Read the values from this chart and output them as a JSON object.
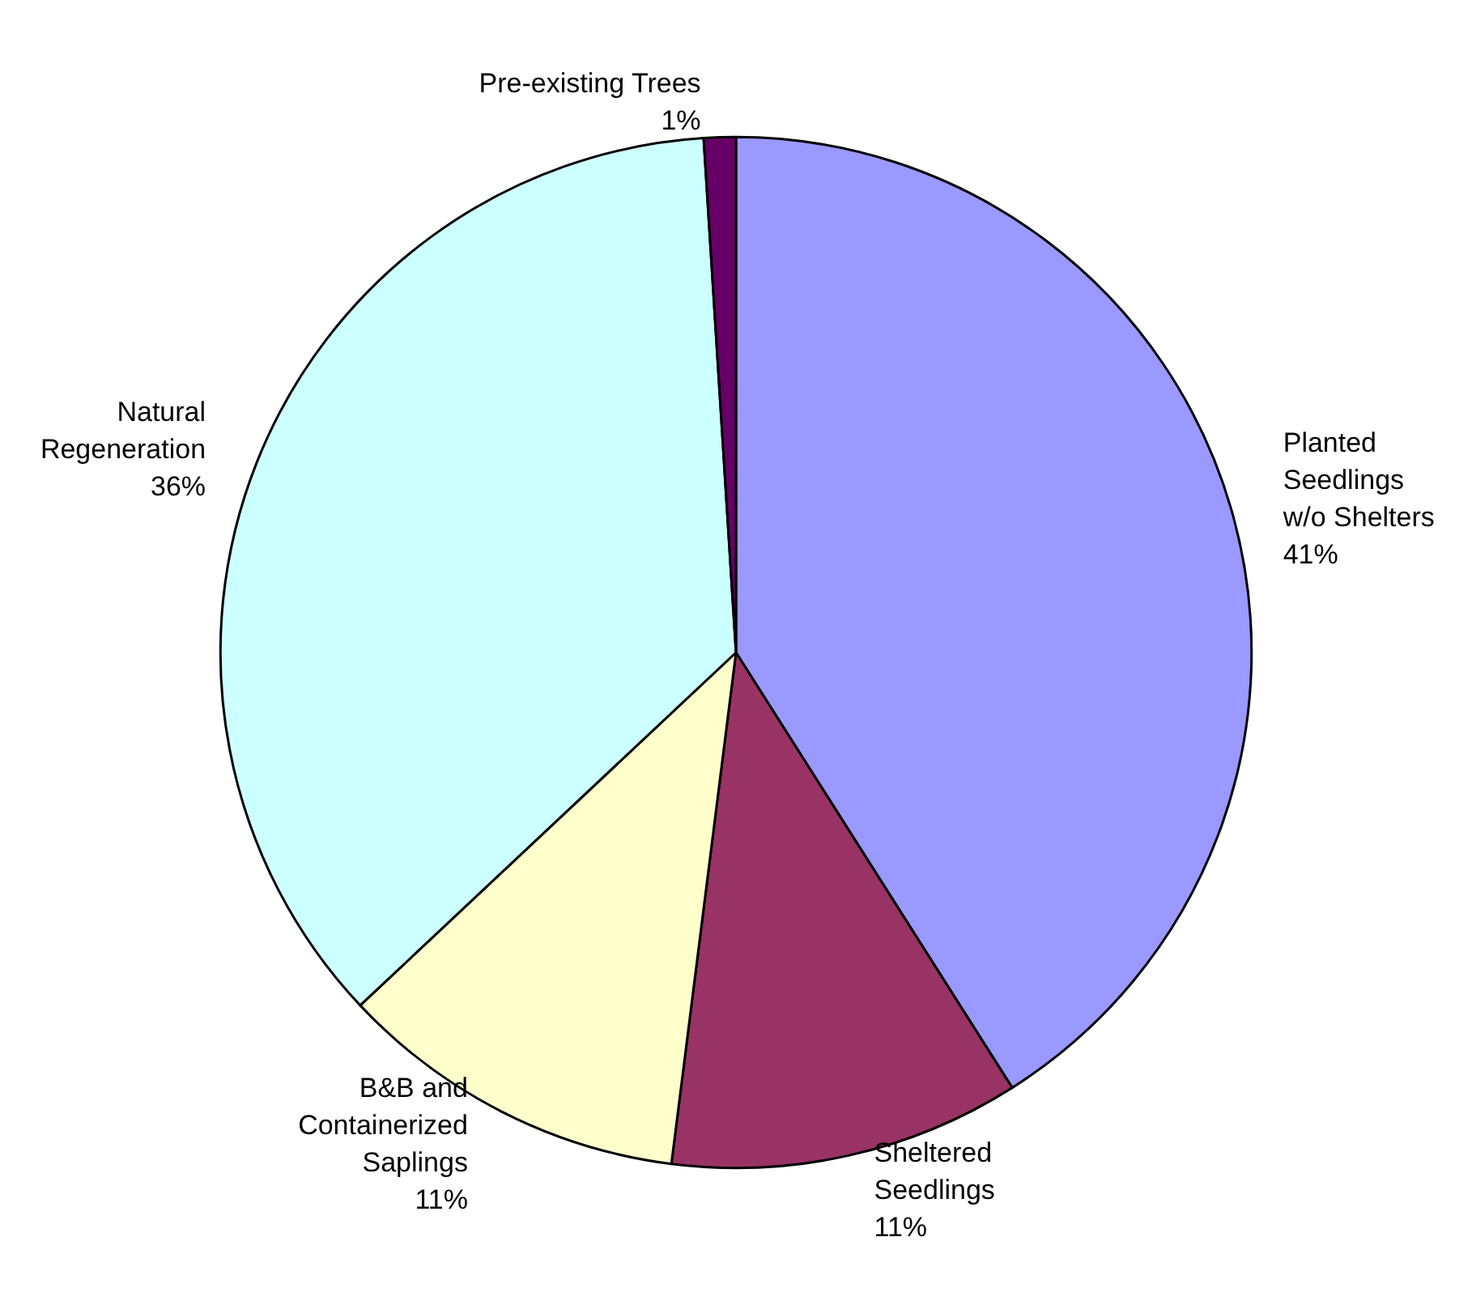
{
  "chart_data": {
    "type": "pie",
    "categories": [
      "Planted\nSeedlings\nw/o Shelters",
      "Sheltered\nSeedlings",
      "B&B and\nContainerized\nSaplings",
      "Natural\nRegeneration",
      "Pre-existing Trees"
    ],
    "values": [
      41,
      11,
      11,
      36,
      1
    ],
    "value_labels": [
      "41%",
      "11%",
      "11%",
      "36%",
      "1%"
    ],
    "colors": [
      "#9999ff",
      "#993366",
      "#ffffcc",
      "#ccffff",
      "#660066"
    ]
  }
}
